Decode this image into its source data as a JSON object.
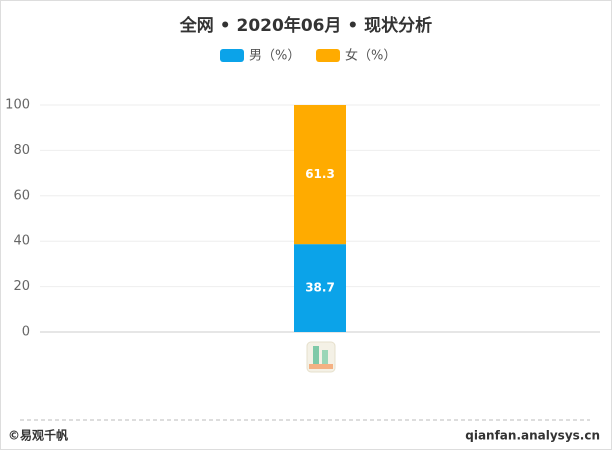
{
  "chart_data": {
    "type": "stacked-bar",
    "title": "全网 • 2020年06月 • 现状分析",
    "categories": [
      null
    ],
    "series": [
      {
        "name": "男（%）",
        "color": "#0ba3e9",
        "values": [
          38.7
        ]
      },
      {
        "name": "女（%）",
        "color": "#ffab00",
        "values": [
          61.3
        ]
      }
    ],
    "ylim": [
      0,
      100
    ],
    "yticks": [
      0,
      20,
      40,
      60,
      80,
      100
    ],
    "grid": true,
    "legend": "top"
  },
  "footer": {
    "left": "©易观千帆",
    "right": "qianfan.analysys.cn"
  }
}
